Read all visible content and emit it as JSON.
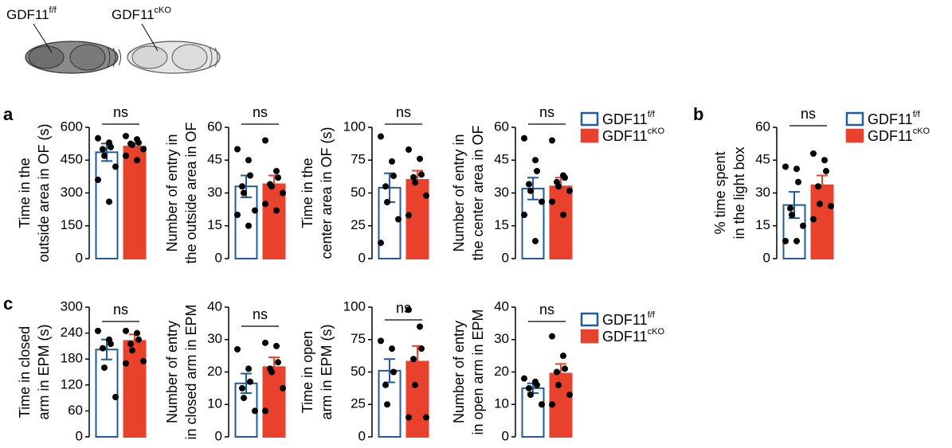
{
  "header": {
    "labels": [
      {
        "text": "GDF11",
        "sup": "f/f"
      },
      {
        "text": "GDF11",
        "sup": "cKO"
      }
    ]
  },
  "panels": [
    "a",
    "b",
    "c"
  ],
  "chart_data": [
    {
      "type": "bar",
      "ylabel": [
        "Time in the",
        "outside area in OF (s)"
      ],
      "annotation": "ns",
      "ylim": [
        0,
        600
      ],
      "yticks": [
        0,
        150,
        300,
        450,
        600
      ],
      "legend": true,
      "series": [
        {
          "name": "GDF11",
          "name_sup": "f/f",
          "color": "#1f5c9c",
          "filled": false,
          "values": [
            486
          ],
          "errors": [
            40
          ],
          "points": [
            550,
            530,
            510,
            500,
            470,
            420,
            360,
            260
          ]
        },
        {
          "name": "GDF11",
          "name_sup": "cKO",
          "color": "#e8412c",
          "filled": true,
          "values": [
            512
          ],
          "errors": [
            14
          ],
          "points": [
            560,
            545,
            530,
            525,
            520,
            500,
            470,
            450
          ]
        }
      ]
    },
    {
      "type": "bar",
      "ylabel": [
        "Number of entry in",
        "the outside area in OF"
      ],
      "annotation": "ns",
      "ylim": [
        0,
        60
      ],
      "yticks": [
        0,
        15,
        30,
        45,
        60
      ],
      "legend": false,
      "series": [
        {
          "name": "GDF11",
          "name_sup": "f/f",
          "color": "#1f5c9c",
          "filled": false,
          "values": [
            33
          ],
          "errors": [
            5
          ],
          "points": [
            50,
            45,
            38,
            33,
            30,
            22,
            20,
            15
          ]
        },
        {
          "name": "GDF11",
          "name_sup": "cKO",
          "color": "#e8412c",
          "filled": true,
          "values": [
            34
          ],
          "errors": [
            4
          ],
          "points": [
            54,
            40,
            37,
            34,
            33,
            30,
            25,
            22
          ]
        }
      ]
    },
    {
      "type": "bar",
      "ylabel": [
        "Time in the",
        "center area in OF (s)"
      ],
      "annotation": "ns",
      "ylim": [
        0,
        100
      ],
      "yticks": [
        0,
        25,
        50,
        75,
        100
      ],
      "legend": false,
      "series": [
        {
          "name": "GDF11",
          "name_sup": "f/f",
          "color": "#1f5c9c",
          "filled": false,
          "values": [
            54
          ],
          "errors": [
            11
          ],
          "points": [
            93,
            74,
            63,
            55,
            43,
            30,
            12
          ]
        },
        {
          "name": "GDF11",
          "name_sup": "cKO",
          "color": "#e8412c",
          "filled": true,
          "values": [
            60
          ],
          "errors": [
            7
          ],
          "points": [
            83,
            76,
            64,
            62,
            58,
            48,
            33
          ]
        }
      ]
    },
    {
      "type": "bar",
      "ylabel": [
        "Number of entry in",
        "the center area in OF"
      ],
      "annotation": "ns",
      "ylim": [
        0,
        60
      ],
      "yticks": [
        0,
        15,
        30,
        45,
        60
      ],
      "legend": false,
      "series": [
        {
          "name": "GDF11",
          "name_sup": "f/f",
          "color": "#1f5c9c",
          "filled": false,
          "values": [
            32
          ],
          "errors": [
            5
          ],
          "points": [
            55,
            45,
            40,
            34,
            31,
            26,
            20,
            8
          ]
        },
        {
          "name": "GDF11",
          "name_sup": "cKO",
          "color": "#e8412c",
          "filled": true,
          "values": [
            33
          ],
          "errors": [
            4
          ],
          "points": [
            54,
            38,
            37,
            35,
            33,
            31,
            26,
            20
          ]
        }
      ]
    },
    {
      "type": "bar",
      "ylabel": [
        "% time spent",
        "in the light box"
      ],
      "annotation": "ns",
      "ylim": [
        0,
        60
      ],
      "yticks": [
        0,
        15,
        30,
        45,
        60
      ],
      "legend": true,
      "series": [
        {
          "name": "GDF11",
          "name_sup": "f/f",
          "color": "#1f5c9c",
          "filled": false,
          "values": [
            24.5
          ],
          "errors": [
            6
          ],
          "points": [
            42,
            41,
            35,
            23,
            20,
            15,
            8,
            8
          ]
        },
        {
          "name": "GDF11",
          "name_sup": "cKO",
          "color": "#e8412c",
          "filled": true,
          "values": [
            33.5
          ],
          "errors": [
            4.5
          ],
          "points": [
            48,
            45,
            40,
            33,
            25,
            24,
            18
          ]
        }
      ]
    },
    {
      "type": "bar",
      "ylabel": [
        "Time in closed",
        "arm in EPM (s)"
      ],
      "annotation": "ns",
      "ylim": [
        0,
        300
      ],
      "yticks": [
        0,
        60,
        120,
        180,
        240,
        300
      ],
      "legend": true,
      "series": [
        {
          "name": "GDF11",
          "name_sup": "f/f",
          "color": "#1f5c9c",
          "filled": false,
          "values": [
            202
          ],
          "errors": [
            23
          ],
          "points": [
            245,
            225,
            215,
            205,
            160,
            92
          ]
        },
        {
          "name": "GDF11",
          "name_sup": "cKO",
          "color": "#e8412c",
          "filled": true,
          "values": [
            222
          ],
          "errors": [
            15
          ],
          "points": [
            245,
            240,
            225,
            215,
            200,
            175,
            170
          ]
        }
      ]
    },
    {
      "type": "bar",
      "ylabel": [
        "Number of entry",
        "in closed arm in EPM"
      ],
      "annotation": "ns",
      "ylim": [
        0,
        40
      ],
      "yticks": [
        0,
        10,
        20,
        30,
        40
      ],
      "legend": false,
      "series": [
        {
          "name": "GDF11",
          "name_sup": "f/f",
          "color": "#1f5c9c",
          "filled": false,
          "values": [
            16.5
          ],
          "errors": [
            3
          ],
          "points": [
            27,
            21,
            17,
            15,
            12,
            8
          ]
        },
        {
          "name": "GDF11",
          "name_sup": "cKO",
          "color": "#e8412c",
          "filled": true,
          "values": [
            21.5
          ],
          "errors": [
            3
          ],
          "points": [
            29,
            28,
            23,
            21,
            20,
            15,
            8
          ]
        }
      ]
    },
    {
      "type": "bar",
      "ylabel": [
        "Time in open",
        "arm in EPM (s)"
      ],
      "annotation": "ns",
      "ylim": [
        0,
        100
      ],
      "yticks": [
        0,
        25,
        50,
        75,
        100
      ],
      "legend": false,
      "series": [
        {
          "name": "GDF11",
          "name_sup": "f/f",
          "color": "#1f5c9c",
          "filled": false,
          "values": [
            51
          ],
          "errors": [
            9
          ],
          "points": [
            74,
            68,
            50,
            40,
            25
          ]
        },
        {
          "name": "GDF11",
          "name_sup": "cKO",
          "color": "#e8412c",
          "filled": true,
          "values": [
            58
          ],
          "errors": [
            12
          ],
          "points": [
            98,
            85,
            68,
            60,
            40,
            15,
            15
          ]
        }
      ]
    },
    {
      "type": "bar",
      "ylabel": [
        "Number of entry",
        "in open arm in EPM"
      ],
      "annotation": "ns",
      "ylim": [
        0,
        40
      ],
      "yticks": [
        0,
        10,
        20,
        30,
        40
      ],
      "legend": false,
      "series": [
        {
          "name": "GDF11",
          "name_sup": "f/f",
          "color": "#1f5c9c",
          "filled": false,
          "values": [
            15
          ],
          "errors": [
            1.5
          ],
          "points": [
            18,
            17,
            16,
            15,
            13,
            10
          ]
        },
        {
          "name": "GDF11",
          "name_sup": "cKO",
          "color": "#e8412c",
          "filled": true,
          "values": [
            19.5
          ],
          "errors": [
            3
          ],
          "points": [
            31,
            25,
            21,
            20,
            16,
            13,
            10
          ]
        }
      ]
    }
  ]
}
